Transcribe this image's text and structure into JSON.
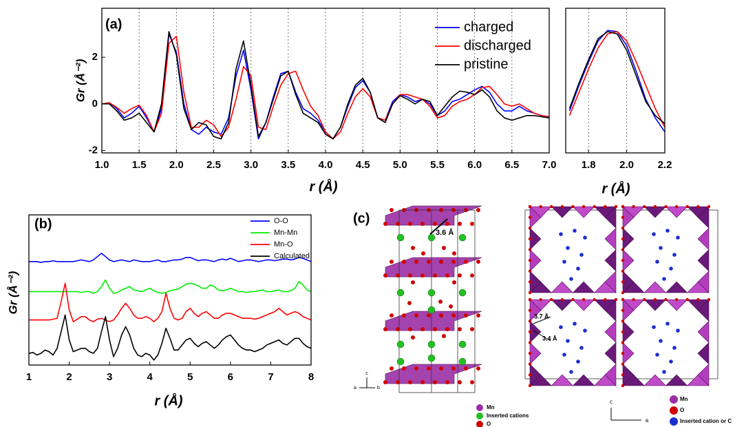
{
  "chart_data": [
    {
      "type": "line",
      "panel_label": "(a)",
      "xlabel": "r (Å)",
      "ylabel": "Gr (Å⁻²)",
      "x": [
        1.0,
        1.1,
        1.2,
        1.3,
        1.4,
        1.5,
        1.6,
        1.7,
        1.8,
        1.9,
        2.0,
        2.1,
        2.2,
        2.3,
        2.4,
        2.5,
        2.6,
        2.7,
        2.8,
        2.9,
        3.0,
        3.1,
        3.2,
        3.3,
        3.4,
        3.5,
        3.6,
        3.7,
        3.8,
        3.9,
        4.0,
        4.1,
        4.2,
        4.3,
        4.4,
        4.5,
        4.6,
        4.7,
        4.8,
        4.9,
        5.0,
        5.1,
        5.2,
        5.3,
        5.4,
        5.5,
        5.6,
        5.7,
        5.8,
        5.9,
        6.0,
        6.1,
        6.2,
        6.3,
        6.4,
        6.5,
        6.6,
        6.7,
        6.8,
        6.9,
        7.0
      ],
      "series": [
        {
          "name": "charged",
          "color": "#0000ff",
          "values": [
            0.0,
            0.05,
            -0.2,
            -0.6,
            -0.4,
            -0.1,
            -0.6,
            -1.2,
            -0.2,
            3.0,
            2.2,
            0.0,
            -1.1,
            -1.3,
            -1.0,
            -1.2,
            -1.3,
            -0.6,
            1.2,
            2.3,
            0.6,
            -1.5,
            -0.8,
            0.3,
            1.3,
            1.4,
            0.5,
            -0.2,
            -0.4,
            -0.7,
            -1.2,
            -1.5,
            -1.0,
            -0.1,
            0.7,
            1.0,
            0.5,
            -0.6,
            -0.7,
            0.1,
            0.4,
            0.3,
            0.1,
            0.2,
            0.0,
            -0.5,
            -0.3,
            0.1,
            0.2,
            0.4,
            0.6,
            0.75,
            0.5,
            0.0,
            -0.3,
            -0.3,
            -0.1,
            -0.3,
            -0.4,
            -0.5,
            -0.6
          ]
        },
        {
          "name": "discharged",
          "color": "#ff0000",
          "values": [
            0.0,
            0.05,
            -0.15,
            -0.4,
            -0.2,
            -0.05,
            -0.5,
            -1.2,
            -0.4,
            2.6,
            2.9,
            0.5,
            -1.0,
            -1.0,
            -0.7,
            -0.9,
            -1.4,
            -1.0,
            0.2,
            1.6,
            1.2,
            -1.0,
            -1.1,
            -0.1,
            0.8,
            1.3,
            1.4,
            0.6,
            -0.1,
            -0.5,
            -1.2,
            -1.5,
            -1.2,
            -0.4,
            0.3,
            0.65,
            0.3,
            -0.6,
            -0.7,
            0.0,
            0.4,
            0.4,
            0.3,
            0.2,
            -0.1,
            -0.6,
            -0.5,
            -0.1,
            0.1,
            0.2,
            0.4,
            0.7,
            0.75,
            0.4,
            0.0,
            -0.1,
            0.0,
            -0.2,
            -0.4,
            -0.5,
            -0.55
          ]
        },
        {
          "name": "pristine",
          "color": "#000000",
          "values": [
            0.0,
            0.0,
            -0.3,
            -0.7,
            -0.6,
            -0.4,
            -0.8,
            -1.2,
            0.0,
            3.1,
            2.1,
            -0.2,
            -1.1,
            -0.8,
            -0.9,
            -1.4,
            -1.5,
            -0.8,
            1.5,
            2.7,
            0.8,
            -1.4,
            -0.8,
            0.2,
            1.2,
            1.4,
            0.4,
            -0.4,
            -0.6,
            -0.8,
            -1.3,
            -1.5,
            -1.0,
            0.0,
            0.8,
            1.1,
            0.5,
            -0.6,
            -0.8,
            0.0,
            0.35,
            0.2,
            0.0,
            0.2,
            0.1,
            -0.5,
            -0.1,
            0.3,
            0.55,
            0.5,
            0.4,
            0.6,
            0.3,
            -0.3,
            -0.6,
            -0.7,
            -0.6,
            -0.5,
            -0.5,
            -0.55,
            -0.6
          ]
        }
      ],
      "xlim": [
        1.0,
        7.0
      ],
      "ylim": [
        -2.1,
        4.1
      ],
      "xticks": [
        {
          "value": 1,
          "label": "1.0"
        },
        1.5,
        {
          "value": 2,
          "label": "2.0"
        },
        2.5,
        {
          "value": 3,
          "label": "3.0"
        },
        3.5,
        {
          "value": 4,
          "label": "4.0"
        },
        4.5,
        {
          "value": 5,
          "label": "5.0"
        },
        5.5,
        {
          "value": 6,
          "label": "6.0"
        },
        6.5,
        {
          "value": 7,
          "label": "7.0"
        }
      ],
      "yticks": [
        -2,
        0,
        2
      ],
      "grid": true,
      "legend": "upper right"
    },
    {
      "type": "line",
      "xlabel": "r (Å)",
      "x": [
        1.7,
        1.75,
        1.8,
        1.85,
        1.9,
        1.95,
        2.0,
        2.05,
        2.1,
        2.15,
        2.2
      ],
      "series": [
        {
          "color": "#0000ff",
          "values": [
            -0.3,
            0.8,
            1.8,
            2.7,
            3.15,
            3.1,
            2.5,
            1.4,
            0.2,
            -0.6,
            -1.2
          ]
        },
        {
          "color": "#ff0000",
          "values": [
            -0.5,
            0.5,
            1.5,
            2.4,
            3.0,
            3.1,
            2.7,
            1.8,
            0.8,
            -0.2,
            -1.0
          ]
        },
        {
          "color": "#000000",
          "values": [
            -0.2,
            0.9,
            1.9,
            2.8,
            3.1,
            3.0,
            2.3,
            1.2,
            0.1,
            -0.5,
            -0.85
          ]
        }
      ],
      "xlim": [
        1.68,
        2.2
      ],
      "ylim": [
        -2.1,
        4.1
      ],
      "xticks": [
        1.8,
        {
          "value": 2,
          "label": "2.0"
        },
        2.2
      ],
      "grid": true
    },
    {
      "type": "line",
      "panel_label": "(b)",
      "xlabel": "r (Å)",
      "ylabel": "Gr (Å⁻²)",
      "x": [
        1.0,
        1.1,
        1.2,
        1.3,
        1.4,
        1.5,
        1.6,
        1.7,
        1.8,
        1.9,
        2.0,
        2.1,
        2.2,
        2.3,
        2.4,
        2.5,
        2.6,
        2.7,
        2.8,
        2.9,
        3.0,
        3.1,
        3.2,
        3.3,
        3.4,
        3.5,
        3.6,
        3.7,
        3.8,
        3.9,
        4.0,
        4.1,
        4.2,
        4.3,
        4.4,
        4.5,
        4.6,
        4.7,
        4.8,
        4.9,
        5.0,
        5.1,
        5.2,
        5.3,
        5.4,
        5.5,
        5.6,
        5.7,
        5.8,
        5.9,
        6.0,
        6.1,
        6.2,
        6.3,
        6.4,
        6.5,
        6.6,
        6.7,
        6.8,
        6.9,
        7.0,
        7.1,
        7.2,
        7.3,
        7.4,
        7.5,
        7.6,
        7.7,
        7.8,
        7.9,
        8.0
      ],
      "series": [
        {
          "name": "O-O",
          "color": "#0000ff",
          "values": [
            6.2,
            6.2,
            6.2,
            6.15,
            6.2,
            6.2,
            6.25,
            6.2,
            6.2,
            6.2,
            6.2,
            6.2,
            6.25,
            6.3,
            6.25,
            6.2,
            6.3,
            6.5,
            6.7,
            6.5,
            6.3,
            6.2,
            6.25,
            6.3,
            6.25,
            6.2,
            6.3,
            6.25,
            6.2,
            6.2,
            6.2,
            6.25,
            6.3,
            6.2,
            6.2,
            6.25,
            6.3,
            6.3,
            6.35,
            6.45,
            6.45,
            6.35,
            6.25,
            6.3,
            6.3,
            6.25,
            6.2,
            6.3,
            6.35,
            6.3,
            6.4,
            6.3,
            6.2,
            6.25,
            6.3,
            6.3,
            6.25,
            6.2,
            6.25,
            6.3,
            6.3,
            6.25,
            6.3,
            6.35,
            6.35,
            6.3,
            6.35,
            6.45,
            6.4,
            6.3,
            6.2
          ]
        },
        {
          "name": "Mn-Mn",
          "color": "#00ee00",
          "values": [
            4.4,
            4.4,
            4.4,
            4.4,
            4.4,
            4.4,
            4.4,
            4.4,
            4.4,
            4.4,
            4.4,
            4.4,
            4.4,
            4.35,
            4.4,
            4.4,
            4.3,
            4.4,
            4.7,
            5.1,
            4.6,
            4.3,
            4.35,
            4.5,
            4.6,
            4.7,
            4.5,
            4.45,
            4.4,
            4.5,
            4.6,
            4.45,
            4.35,
            4.3,
            4.35,
            4.45,
            4.5,
            4.55,
            4.7,
            4.85,
            4.9,
            4.85,
            4.75,
            4.6,
            4.6,
            4.8,
            4.7,
            4.5,
            4.45,
            4.5,
            4.6,
            4.5,
            4.4,
            4.4,
            4.35,
            4.4,
            4.4,
            4.45,
            4.5,
            4.4,
            4.4,
            4.45,
            4.5,
            4.4,
            4.4,
            4.45,
            4.6,
            5.0,
            4.8,
            4.5,
            4.4
          ]
        },
        {
          "name": "Mn-O",
          "color": "#ff0000",
          "values": [
            2.7,
            2.7,
            2.7,
            2.7,
            2.7,
            2.7,
            2.75,
            2.8,
            3.8,
            4.9,
            3.3,
            2.6,
            2.75,
            2.9,
            2.9,
            2.7,
            2.6,
            2.75,
            2.8,
            2.7,
            2.6,
            2.7,
            3.0,
            3.4,
            3.7,
            3.4,
            3.0,
            2.8,
            2.8,
            2.9,
            2.8,
            2.6,
            2.8,
            3.2,
            4.3,
            3.4,
            2.8,
            2.7,
            2.8,
            3.2,
            3.4,
            3.1,
            2.9,
            3.1,
            3.2,
            3.0,
            2.8,
            2.8,
            3.0,
            3.1,
            3.1,
            3.0,
            2.9,
            2.8,
            2.8,
            2.8,
            2.75,
            2.8,
            2.9,
            3.0,
            3.1,
            3.2,
            3.4,
            3.2,
            3.0,
            3.1,
            3.2,
            3.1,
            2.9,
            2.8,
            2.7
          ]
        },
        {
          "name": "Calculated",
          "color": "#000000",
          "values": [
            0.7,
            0.75,
            0.6,
            0.7,
            0.9,
            0.8,
            0.6,
            1.0,
            2.0,
            3.0,
            1.5,
            0.8,
            0.9,
            1.0,
            1.0,
            0.8,
            0.7,
            1.0,
            2.0,
            2.9,
            1.5,
            0.5,
            1.0,
            1.8,
            2.3,
            1.8,
            1.0,
            0.6,
            0.5,
            0.7,
            0.6,
            0.3,
            0.6,
            1.3,
            2.2,
            1.6,
            0.9,
            0.9,
            1.2,
            1.5,
            1.6,
            1.3,
            1.1,
            1.3,
            1.4,
            1.2,
            1.0,
            1.2,
            1.5,
            1.7,
            1.8,
            1.5,
            1.2,
            1.0,
            0.9,
            0.9,
            0.8,
            0.9,
            1.0,
            1.2,
            1.3,
            1.4,
            1.5,
            1.3,
            1.2,
            1.4,
            1.6,
            1.6,
            1.3,
            1.1,
            1.0
          ]
        }
      ],
      "xlim": [
        1,
        8
      ],
      "ylim": [
        0,
        9
      ],
      "xticks": [
        1,
        2,
        3,
        4,
        5,
        6,
        7,
        8
      ],
      "legend": "upper right"
    }
  ],
  "structure": {
    "panel_label": "(c)",
    "layered": {
      "distance": "3.6 Å",
      "axes": [
        "c",
        "a",
        "b"
      ],
      "legend": [
        "Mn",
        "Inserted cations",
        "O"
      ]
    },
    "tunnel": {
      "distances": [
        "3.7 Å",
        "3.4 Å"
      ],
      "axes": [
        "c",
        "a"
      ],
      "legend": [
        "Mn",
        "O",
        "Inserted cation or C"
      ]
    }
  }
}
